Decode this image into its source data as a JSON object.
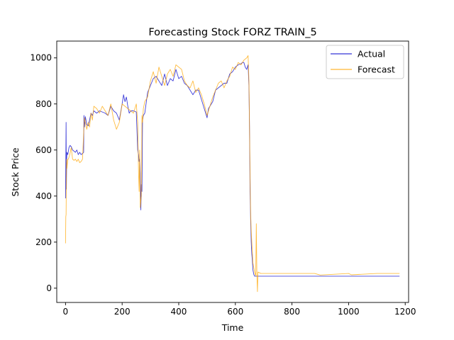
{
  "chart_data": {
    "type": "line",
    "title": "Forecasting Stock FORZ TRAIN_5",
    "xlabel": "Time",
    "ylabel": "Stock Price",
    "xlim": [
      -31,
      1212
    ],
    "ylim": [
      -62,
      1073
    ],
    "xticks": [
      0,
      200,
      400,
      600,
      800,
      1000,
      1200
    ],
    "yticks": [
      0,
      200,
      400,
      600,
      800,
      1000
    ],
    "grid": false,
    "legend_position": "top-right",
    "series": [
      {
        "name": "Actual",
        "color": "#0000cc",
        "x": [
          0,
          2,
          3,
          4,
          5,
          8,
          12,
          16,
          20,
          25,
          30,
          35,
          40,
          45,
          50,
          55,
          60,
          64,
          65,
          67,
          70,
          75,
          80,
          85,
          90,
          95,
          100,
          110,
          120,
          130,
          140,
          150,
          160,
          170,
          180,
          190,
          200,
          205,
          210,
          215,
          220,
          225,
          230,
          240,
          250,
          255,
          258,
          260,
          262,
          264,
          266,
          268,
          270,
          272,
          275,
          280,
          290,
          300,
          310,
          320,
          330,
          340,
          350,
          360,
          370,
          380,
          390,
          400,
          410,
          420,
          430,
          440,
          450,
          460,
          470,
          480,
          490,
          495,
          500,
          505,
          510,
          520,
          530,
          540,
          550,
          560,
          570,
          580,
          590,
          600,
          610,
          620,
          625,
          630,
          635,
          640,
          645,
          648,
          650,
          652,
          654,
          656,
          658,
          660,
          662,
          665,
          668,
          670,
          672,
          675,
          680,
          700,
          800,
          900,
          1000,
          1100,
          1180
        ],
        "y": [
          390,
          720,
          430,
          560,
          590,
          580,
          610,
          620,
          615,
          600,
          595,
          590,
          600,
          580,
          590,
          580,
          585,
          590,
          750,
          700,
          745,
          710,
          705,
          730,
          760,
          750,
          770,
          760,
          770,
          765,
          760,
          750,
          790,
          770,
          760,
          730,
          800,
          840,
          810,
          830,
          790,
          760,
          770,
          770,
          765,
          600,
          580,
          550,
          560,
          500,
          340,
          450,
          420,
          730,
          750,
          760,
          850,
          880,
          910,
          920,
          900,
          880,
          930,
          880,
          910,
          900,
          950,
          910,
          920,
          890,
          880,
          860,
          840,
          860,
          860,
          820,
          780,
          760,
          740,
          780,
          790,
          810,
          860,
          870,
          880,
          890,
          890,
          930,
          940,
          960,
          970,
          975,
          980,
          980,
          960,
          950,
          970,
          880,
          700,
          420,
          300,
          200,
          150,
          120,
          80,
          60,
          52,
          52,
          52,
          52,
          52,
          52,
          52,
          52,
          52,
          52,
          52
        ]
      },
      {
        "name": "Forecast",
        "color": "#ffa500",
        "x": [
          0,
          1,
          2,
          3,
          4,
          5,
          8,
          10,
          15,
          20,
          25,
          30,
          35,
          40,
          45,
          50,
          55,
          60,
          65,
          67,
          70,
          75,
          80,
          85,
          90,
          95,
          100,
          110,
          120,
          130,
          140,
          150,
          160,
          170,
          180,
          190,
          200,
          210,
          220,
          230,
          240,
          250,
          255,
          258,
          260,
          262,
          264,
          266,
          268,
          270,
          272,
          275,
          280,
          290,
          300,
          310,
          320,
          330,
          340,
          350,
          360,
          370,
          380,
          390,
          400,
          410,
          420,
          430,
          440,
          450,
          460,
          470,
          480,
          490,
          500,
          510,
          520,
          530,
          540,
          550,
          560,
          570,
          580,
          590,
          600,
          610,
          620,
          630,
          640,
          645,
          648,
          650,
          652,
          654,
          656,
          658,
          660,
          662,
          665,
          668,
          670,
          672,
          674,
          676,
          678,
          680,
          690,
          700,
          800,
          880,
          900,
          1000,
          1010,
          1100,
          1180
        ],
        "y": [
          195,
          310,
          320,
          480,
          560,
          520,
          560,
          560,
          580,
          610,
          560,
          555,
          560,
          550,
          560,
          545,
          550,
          560,
          700,
          740,
          720,
          690,
          720,
          700,
          760,
          730,
          790,
          780,
          760,
          790,
          770,
          750,
          800,
          730,
          690,
          720,
          800,
          790,
          780,
          770,
          760,
          800,
          720,
          500,
          420,
          600,
          350,
          380,
          400,
          750,
          720,
          780,
          810,
          830,
          900,
          940,
          890,
          960,
          920,
          880,
          930,
          950,
          920,
          970,
          960,
          950,
          900,
          880,
          870,
          900,
          850,
          870,
          840,
          800,
          750,
          790,
          830,
          860,
          890,
          900,
          870,
          900,
          920,
          960,
          950,
          980,
          970,
          990,
          1000,
          1010,
          900,
          700,
          480,
          320,
          250,
          200,
          160,
          110,
          90,
          70,
          60,
          55,
          280,
          60,
          -15,
          70,
          64,
          64,
          64,
          64,
          57,
          64,
          58,
          64,
          64
        ]
      }
    ]
  },
  "legend": {
    "items": [
      {
        "label": "Actual",
        "color": "#0000cc"
      },
      {
        "label": "Forecast",
        "color": "#ffa500"
      }
    ]
  }
}
